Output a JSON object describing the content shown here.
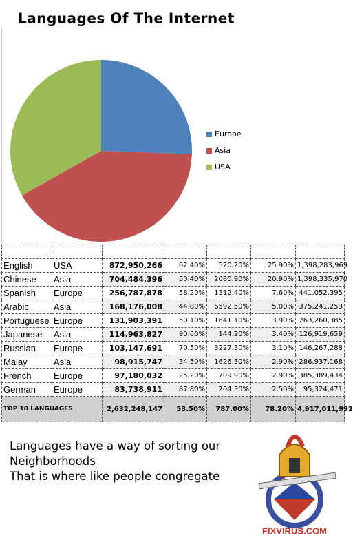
{
  "chart_data": {
    "type": "pie",
    "title": "Languages Of The Internet",
    "categories": [
      "Europe",
      "Asia",
      "USA"
    ],
    "values": [
      25.6,
      41.3,
      33.2
    ],
    "colors": [
      "#4f81bd",
      "#c0504d",
      "#9bbb59"
    ],
    "legend": "right"
  },
  "table": {
    "rows": [
      [
        "English",
        "USA",
        "872,950,266",
        "62.40%",
        "520.20%",
        "25.90%",
        "1,398,283,969"
      ],
      [
        "Chinese",
        "Asia",
        "704,484,396",
        "50.40%",
        "2080.90%",
        "20.90%",
        "1,398,335,970"
      ],
      [
        "Spanish",
        "Europe",
        "256,787,878",
        "58.20%",
        "1312.40%",
        "7.60%",
        "441,052,395"
      ],
      [
        "Arabic",
        "Asia",
        "168,176,008",
        "44.80%",
        "6592.50%",
        "5.00%",
        "375,241,253"
      ],
      [
        "Portuguese",
        "Europe",
        "131,903,391",
        "50.10%",
        "1641.10%",
        "3.90%",
        "263,260,385"
      ],
      [
        "Japanese",
        "Asia",
        "114,963,827",
        "90.60%",
        "144.20%",
        "3.40%",
        "126,919,659"
      ],
      [
        "Russian",
        "Europe",
        "103,147,691",
        "70.50%",
        "3227.30%",
        "3.10%",
        "146,267,288"
      ],
      [
        "Malay",
        "Asia",
        "98,915,747",
        "34.50%",
        "1626.30%",
        "2.90%",
        "286,937,168"
      ],
      [
        "French",
        "Europe",
        "97,180,032",
        "25.20%",
        "709.90%",
        "2.90%",
        "385,389,434"
      ],
      [
        "German",
        "Europe",
        "83,738,911",
        "87.80%",
        "204.30%",
        "2.50%",
        "95,324,471"
      ]
    ],
    "total": [
      "TOP 10 LANGUAGES",
      "2,632,248,147",
      "53.50%",
      "787.00%",
      "78.20%",
      "4,917,011,992"
    ]
  },
  "caption": [
    "Languages have a way of sorting our Neighborhoods",
    "That is where like people congregate"
  ],
  "logo": {
    "text": "FIXVIRUS.COM"
  }
}
